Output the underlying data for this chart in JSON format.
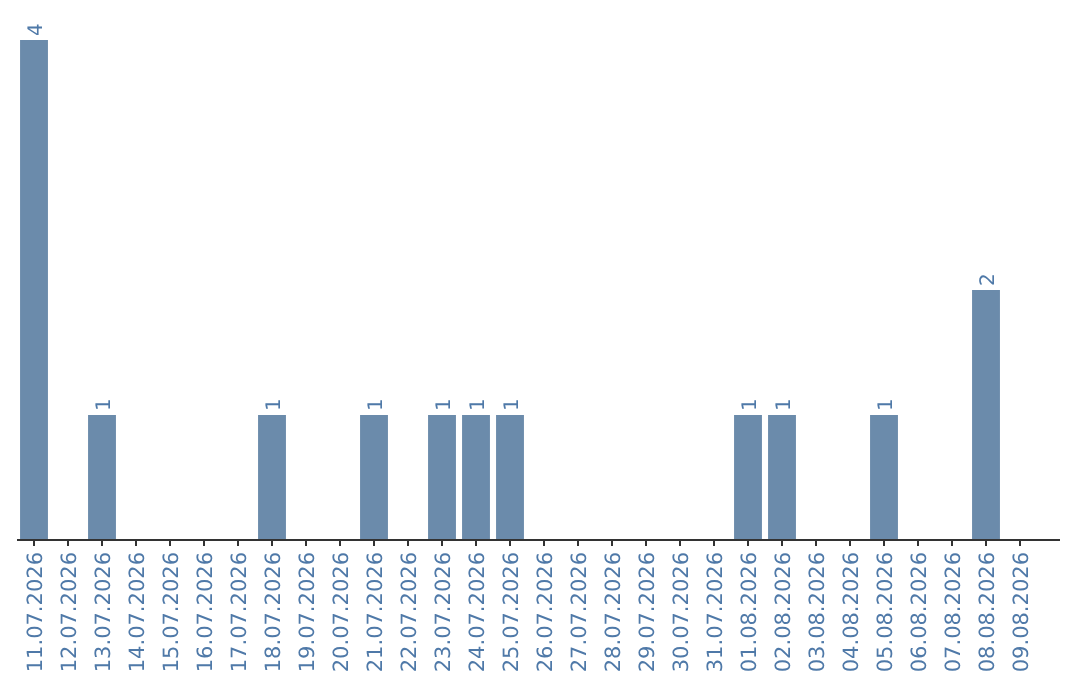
{
  "chart_data": {
    "type": "bar",
    "categories": [
      "11.07.2026",
      "12.07.2026",
      "13.07.2026",
      "14.07.2026",
      "15.07.2026",
      "16.07.2026",
      "17.07.2026",
      "18.07.2026",
      "19.07.2026",
      "20.07.2026",
      "21.07.2026",
      "22.07.2026",
      "23.07.2026",
      "24.07.2026",
      "25.07.2026",
      "26.07.2026",
      "27.07.2026",
      "28.07.2026",
      "29.07.2026",
      "30.07.2026",
      "31.07.2026",
      "01.08.2026",
      "02.08.2026",
      "03.08.2026",
      "04.08.2026",
      "05.08.2026",
      "06.08.2026",
      "07.08.2026",
      "08.08.2026",
      "09.08.2026"
    ],
    "values": [
      4,
      0,
      1,
      0,
      0,
      0,
      0,
      1,
      0,
      0,
      1,
      0,
      1,
      1,
      1,
      0,
      0,
      0,
      0,
      0,
      0,
      1,
      1,
      0,
      0,
      1,
      0,
      0,
      2,
      0
    ],
    "value_labels": [
      "4",
      null,
      "1",
      null,
      null,
      null,
      null,
      "1",
      null,
      null,
      "1",
      null,
      "1",
      "1",
      "1",
      null,
      null,
      null,
      null,
      null,
      null,
      "1",
      "1",
      null,
      null,
      "1",
      null,
      null,
      "2",
      null
    ],
    "color": "#6b8bab"
  }
}
